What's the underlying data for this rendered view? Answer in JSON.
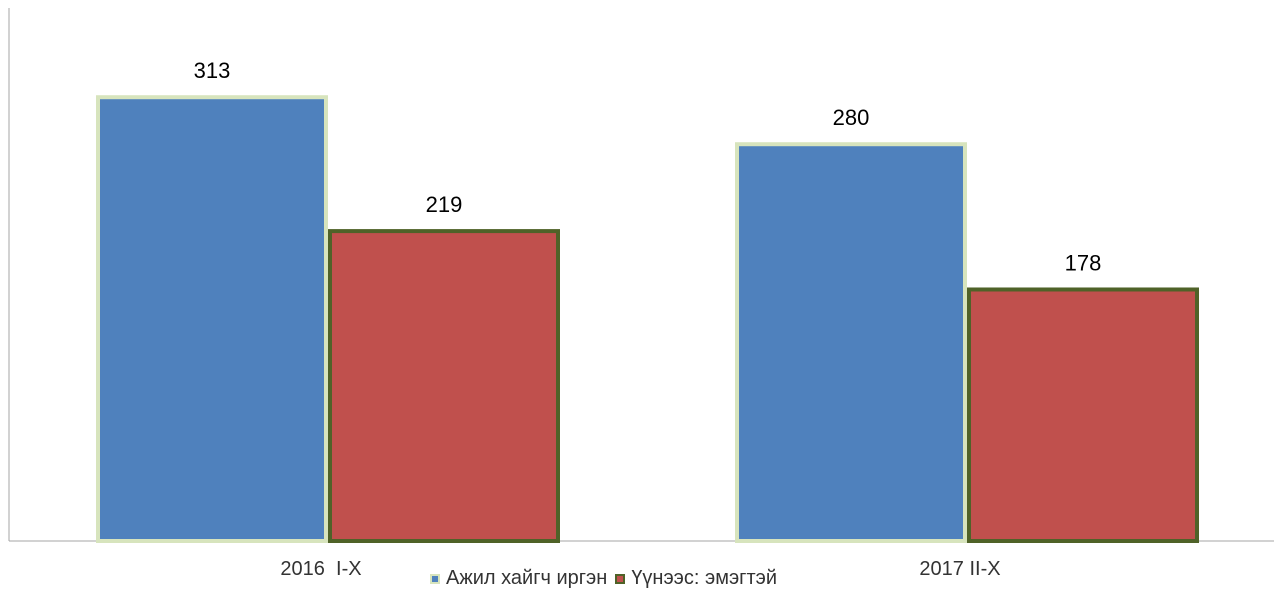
{
  "chart_data": {
    "type": "bar",
    "title": "",
    "xlabel": "",
    "ylabel": "",
    "categories": [
      "2016  I-X",
      "2017 II-X"
    ],
    "series": [
      {
        "name": "Ажил хайгч иргэн",
        "values": [
          313,
          280
        ],
        "fill": "#4F81BD",
        "stroke": "#D7E4BD"
      },
      {
        "name": "Үүнээс: эмэгтэй",
        "values": [
          219,
          178
        ],
        "fill": "#C0504D",
        "stroke": "#4F6228"
      }
    ],
    "ylim": [
      0,
      330
    ],
    "grid": false,
    "data_labels": true,
    "legend_position": "bottom"
  }
}
